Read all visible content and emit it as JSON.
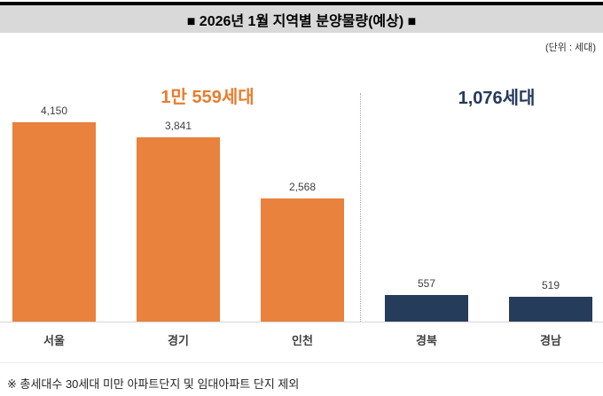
{
  "header": {
    "title": "■ 2026년 1월 지역별 분양물량(예상) ■",
    "unit_label": "(단위 : 세대)"
  },
  "chart_data": {
    "type": "bar",
    "title": "2026년 1월 지역별 분양물량(예상)",
    "unit": "세대",
    "categories": [
      "서울",
      "경기",
      "인천",
      "경북",
      "경남"
    ],
    "values": [
      4150,
      3841,
      2568,
      557,
      519
    ],
    "value_labels": [
      "4,150",
      "3,841",
      "2,568",
      "557",
      "519"
    ],
    "groups": [
      {
        "label": "1만 559세대",
        "total": 10559,
        "regions": [
          "서울",
          "경기",
          "인천"
        ],
        "color": "#e8823c",
        "label_color": "#e87d2e"
      },
      {
        "label": "1,076세대",
        "total": 1076,
        "regions": [
          "경북",
          "경남"
        ],
        "color": "#263c5b",
        "label_color": "#24395b"
      }
    ],
    "ylim": [
      0,
      4500
    ],
    "grid": false,
    "legend": false,
    "value_labels_shown": true,
    "separator": "dotted vertical line between 인천 and 경북",
    "footnote": "※ 총세대수 30세대 미만 아파트단지 및 임대아파트 단지 제외"
  },
  "colors": {
    "orange_bar": "#e8823c",
    "navy_bar": "#263c5b",
    "title_bg": "#d9d9d9",
    "axis_line": "#d6d6d6",
    "label_text": "#404040"
  }
}
